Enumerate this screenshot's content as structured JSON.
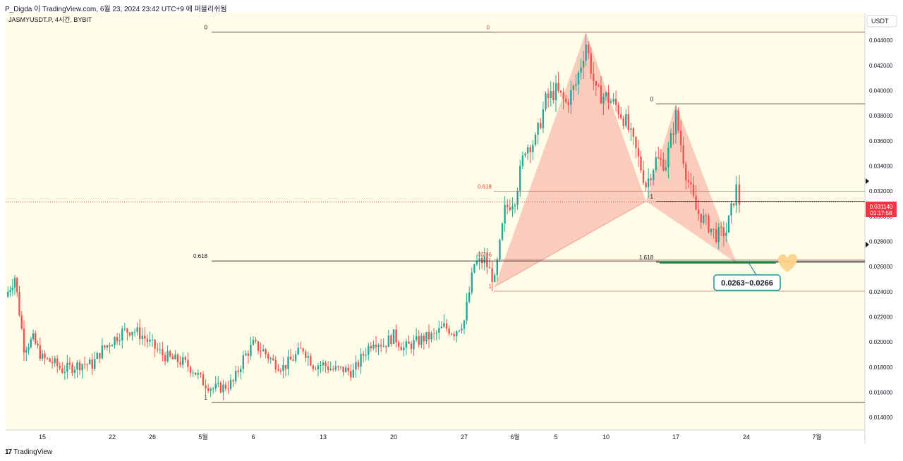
{
  "header": {
    "publish_line": "P_Digda 이 TradingView.com, 6월 23, 2024 23:42 UTC+9 에 퍼블리쉬됨"
  },
  "footer": {
    "brand": "TradingView",
    "logo_glyph": "17"
  },
  "symbol": {
    "title": "JASMYUSDT.P, 4시간, BYBIT",
    "currency": "USDT"
  },
  "colors": {
    "background": "#fffde7",
    "up": "#26a69a",
    "down": "#ef5350",
    "pattern_fill": "#f8bbae",
    "price_tag": "#f23645",
    "box_border": "#2b8a9e"
  },
  "current_price": {
    "value": 0.03114,
    "label": "0.031140",
    "countdown": "01:17:58"
  },
  "fib_left": {
    "levels": [
      {
        "label": "0",
        "value": 0.04465
      },
      {
        "label": "0.618",
        "value": 0.02645
      },
      {
        "label": "1",
        "value": 0.0152
      }
    ]
  },
  "fib_red": {
    "levels": [
      {
        "label": "0",
        "value": 0.04465
      },
      {
        "label": "0.618",
        "value": 0.03198
      },
      {
        "label": "0.786",
        "value": 0.02656
      },
      {
        "label": "1",
        "value": 0.02405
      }
    ]
  },
  "fib_right": {
    "levels": [
      {
        "label": "0",
        "value": 0.03895
      },
      {
        "label": "1",
        "value": 0.0312
      },
      {
        "label": "1.618",
        "value": 0.02635
      }
    ]
  },
  "target_box": {
    "label": "0.0263~0.0266",
    "low": 0.0263,
    "high": 0.0266
  },
  "chart_data": {
    "type": "candlestick",
    "ylim": [
      0.013,
      0.0462
    ],
    "y_ticks": [
      "0.014000",
      "0.016000",
      "0.018000",
      "0.020000",
      "0.022000",
      "0.024000",
      "0.026000",
      "0.028000",
      "0.030000",
      "0.032000",
      "0.034000",
      "0.036000",
      "0.038000",
      "0.040000",
      "0.042000",
      "0.044000"
    ],
    "y_tick_values": [
      0.014,
      0.016,
      0.018,
      0.02,
      0.022,
      0.024,
      0.026,
      0.028,
      0.03,
      0.032,
      0.034,
      0.036,
      0.038,
      0.04,
      0.042,
      0.044
    ],
    "x_ticks": [
      "15",
      "22",
      "26",
      "5월",
      "6",
      "13",
      "20",
      "27",
      "6월",
      "5",
      "10",
      "17",
      "24",
      "7월"
    ],
    "harmonic_pattern": {
      "points": [
        {
          "date": "5/30",
          "price": 0.0244
        },
        {
          "date": "6/8",
          "price": 0.04465
        },
        {
          "date": "6/14",
          "price": 0.0312
        },
        {
          "date": "6/17",
          "price": 0.03895
        },
        {
          "date": "6/23",
          "price": 0.0263
        }
      ]
    },
    "price_path": [
      [
        "4/11",
        0.0236
      ],
      [
        "4/12",
        0.0252
      ],
      [
        "4/13",
        0.0196
      ],
      [
        "4/14",
        0.0202
      ],
      [
        "4/15",
        0.0187
      ],
      [
        "4/16",
        0.0184
      ],
      [
        "4/17",
        0.0178
      ],
      [
        "4/18",
        0.018
      ],
      [
        "4/19",
        0.0183
      ],
      [
        "4/20",
        0.0182
      ],
      [
        "4/21",
        0.0194
      ],
      [
        "4/22",
        0.0201
      ],
      [
        "4/23",
        0.0208
      ],
      [
        "4/24",
        0.021
      ],
      [
        "4/25",
        0.0205
      ],
      [
        "4/26",
        0.0197
      ],
      [
        "4/27",
        0.019
      ],
      [
        "4/28",
        0.0186
      ],
      [
        "4/29",
        0.0184
      ],
      [
        "4/30",
        0.0178
      ],
      [
        "5/1",
        0.0168
      ],
      [
        "5/2",
        0.0163
      ],
      [
        "5/3",
        0.0164
      ],
      [
        "5/4",
        0.0168
      ],
      [
        "5/5",
        0.0187
      ],
      [
        "5/6",
        0.0198
      ],
      [
        "5/7",
        0.0193
      ],
      [
        "5/8",
        0.0184
      ],
      [
        "5/9",
        0.018
      ],
      [
        "5/10",
        0.0187
      ],
      [
        "5/11",
        0.0195
      ],
      [
        "5/12",
        0.0182
      ],
      [
        "5/13",
        0.0182
      ],
      [
        "5/14",
        0.0178
      ],
      [
        "5/15",
        0.0178
      ],
      [
        "5/16",
        0.0176
      ],
      [
        "5/17",
        0.019
      ],
      [
        "5/18",
        0.0202
      ],
      [
        "5/19",
        0.0198
      ],
      [
        "5/20",
        0.0205
      ],
      [
        "5/21",
        0.0195
      ],
      [
        "5/22",
        0.0199
      ],
      [
        "5/23",
        0.0203
      ],
      [
        "5/24",
        0.0205
      ],
      [
        "5/25",
        0.0212
      ],
      [
        "5/26",
        0.0208
      ],
      [
        "5/27",
        0.0217
      ],
      [
        "5/28",
        0.0262
      ],
      [
        "5/29",
        0.0265
      ],
      [
        "5/30",
        0.0248
      ],
      [
        "5/31",
        0.0305
      ],
      [
        "6/1",
        0.0315
      ],
      [
        "6/2",
        0.0355
      ],
      [
        "6/3",
        0.036
      ],
      [
        "6/4",
        0.0392
      ],
      [
        "6/5",
        0.04
      ],
      [
        "6/6",
        0.039
      ],
      [
        "6/7",
        0.0405
      ],
      [
        "6/8",
        0.0438
      ],
      [
        "6/9",
        0.0398
      ],
      [
        "6/10",
        0.0395
      ],
      [
        "6/11",
        0.0388
      ],
      [
        "6/12",
        0.0375
      ],
      [
        "6/13",
        0.0352
      ],
      [
        "6/14",
        0.0325
      ],
      [
        "6/15",
        0.0345
      ],
      [
        "6/16",
        0.0342
      ],
      [
        "6/17",
        0.038
      ],
      [
        "6/18",
        0.0335
      ],
      [
        "6/19",
        0.0305
      ],
      [
        "6/20",
        0.0295
      ],
      [
        "6/21",
        0.0285
      ],
      [
        "6/22",
        0.0288
      ],
      [
        "6/23",
        0.0322
      ],
      [
        "6/23b",
        0.0311
      ]
    ]
  }
}
